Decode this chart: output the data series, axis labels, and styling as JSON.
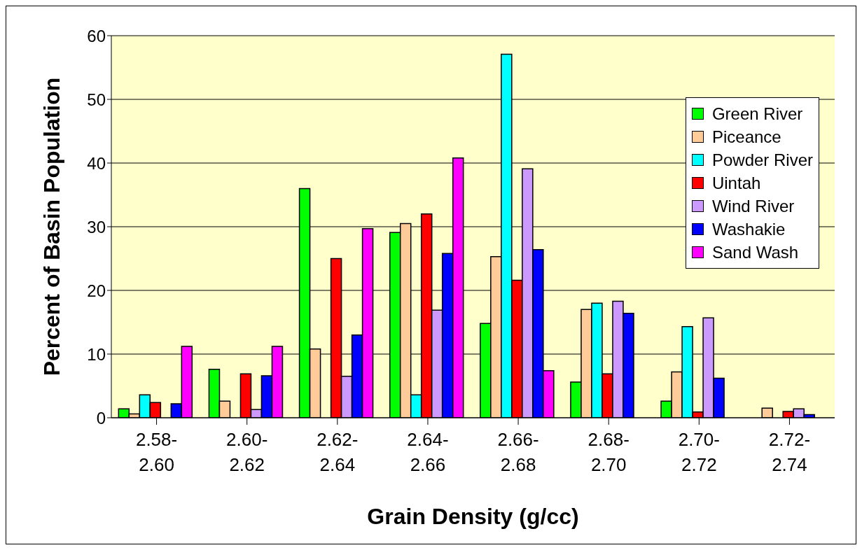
{
  "chart_data": {
    "type": "bar",
    "xlabel": "Grain Density (g/cc)",
    "ylabel": "Percent of Basin Population",
    "categories": [
      "2.58-2.60",
      "2.60-2.62",
      "2.62-2.64",
      "2.64-2.66",
      "2.66-2.68",
      "2.68-2.70",
      "2.70-2.72",
      "2.72-2.74"
    ],
    "series": [
      {
        "name": "Green River",
        "color": "#00ff00",
        "values": [
          1.4,
          7.6,
          36,
          29.1,
          14.8,
          5.6,
          2.6,
          0
        ]
      },
      {
        "name": "Piceance",
        "color": "#ffcc99",
        "values": [
          0.6,
          2.6,
          10.8,
          30.5,
          25.3,
          17,
          7.2,
          1.5
        ]
      },
      {
        "name": "Powder River",
        "color": "#00ffff",
        "values": [
          3.6,
          0,
          0,
          3.6,
          57.1,
          18,
          14.3,
          0
        ]
      },
      {
        "name": "Uintah",
        "color": "#ff0000",
        "values": [
          2.4,
          6.9,
          25,
          32,
          21.6,
          6.9,
          0.9,
          1
        ]
      },
      {
        "name": "Wind River",
        "color": "#cc99ff",
        "values": [
          0,
          1.3,
          6.5,
          16.9,
          39.1,
          18.3,
          15.7,
          1.4
        ]
      },
      {
        "name": "Washakie",
        "color": "#0000ff",
        "values": [
          2.2,
          6.6,
          13,
          25.8,
          26.4,
          16.4,
          6.2,
          0.5
        ]
      },
      {
        "name": "Sand Wash",
        "color": "#ff00ff",
        "values": [
          11.2,
          11.2,
          29.7,
          40.8,
          7.4,
          0,
          0,
          0
        ]
      }
    ],
    "ylim": [
      0,
      60
    ],
    "yticks": [
      0,
      10,
      20,
      30,
      40,
      50,
      60
    ],
    "grid": "y",
    "legend": "top right"
  }
}
